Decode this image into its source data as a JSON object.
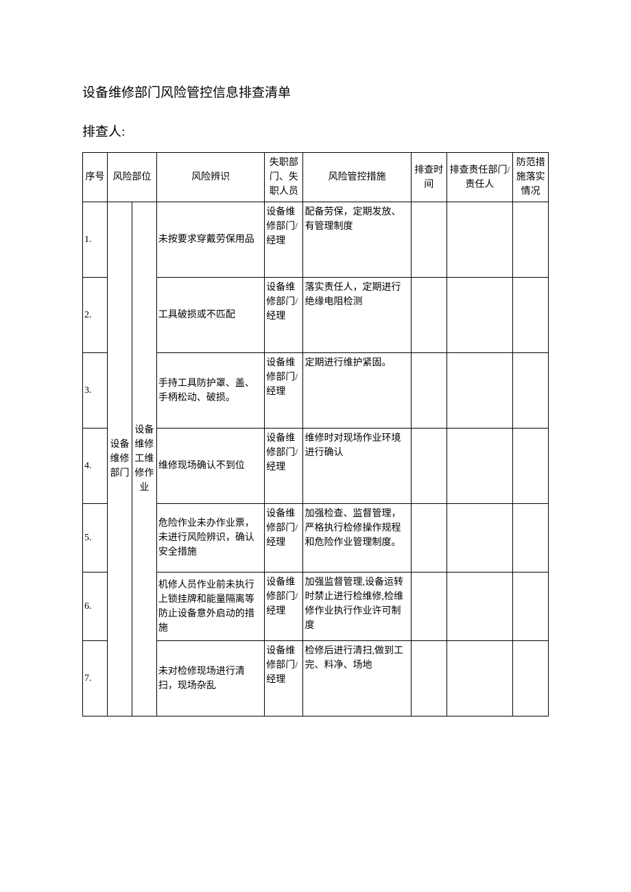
{
  "title": "设备维修部门风险管控信息排查清单",
  "subtitle": "排查人:",
  "headers": {
    "seq": "序号",
    "part": "风险部位",
    "risk": "风险辨识",
    "dept": "失职部门、失职人员",
    "measure": "风险管控措施",
    "time": "排查时间",
    "resp": "排查责任部门/责任人",
    "impl": "防范措施落实情况"
  },
  "span_col1": "设备维修部门",
  "span_col2": "设备维修工维修作业",
  "rows": [
    {
      "seq": "1.",
      "risk": "未按要求穿戴劳保用品",
      "dept": "设备维修部门/经理",
      "measure": "配备劳保，定期发放、有管理制度",
      "time": "",
      "resp": "",
      "impl": ""
    },
    {
      "seq": "2.",
      "risk": "工具破损或不匹配",
      "dept": "设备维修部门/经理",
      "measure": "落实责任人，定期进行绝缘电阻检测",
      "time": "",
      "resp": "",
      "impl": ""
    },
    {
      "seq": "3.",
      "risk": "手持工具防护罩、盖、手柄松动、破损。",
      "dept": "设备维修部门/经理",
      "measure": "定期进行维护紧固。",
      "time": "",
      "resp": "",
      "impl": ""
    },
    {
      "seq": "4.",
      "risk": "维修现场确认不到位",
      "dept": "设备维修部门/经理",
      "measure": "维修时对现场作业环境进行确认",
      "time": "",
      "resp": "",
      "impl": ""
    },
    {
      "seq": "5.",
      "risk": "危险作业未办作业票，未进行风险辨识，确认安全措施",
      "dept": "设备维修部门/经理",
      "measure": "加强检查、监督管理，严格执行检修操作规程和危险作业管理制度。",
      "time": "",
      "resp": "",
      "impl": ""
    },
    {
      "seq": "6.",
      "risk": "机修人员作业前未执行上锁挂牌和能量隔离等防止设备意外启动的措施",
      "dept": "设备维修部门/经理",
      "measure": "加强监督管理,设备运转时禁止进行检维修,检维修作业执行作业许可制度",
      "time": "",
      "resp": "",
      "impl": ""
    },
    {
      "seq": "7.",
      "risk": "未对检修现场进行清扫，现场杂乱",
      "dept": "设备维修部门/经理",
      "measure": "检修后进行清扫,做到工完、料净、场地",
      "time": "",
      "resp": "",
      "impl": ""
    }
  ]
}
